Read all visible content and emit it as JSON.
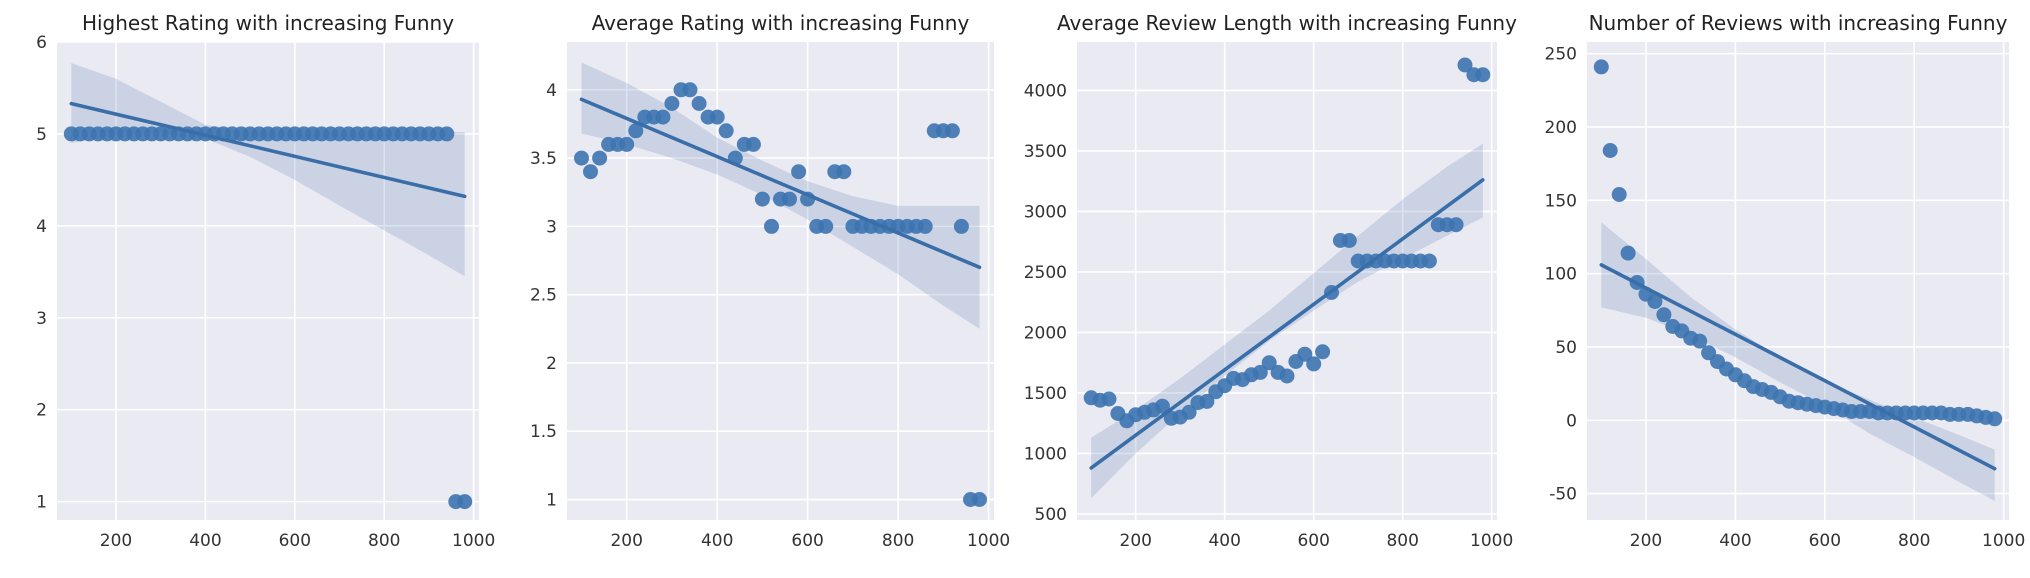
{
  "chart_data": [
    {
      "type": "scatter",
      "title": "Highest Rating with increasing Funny",
      "xlabel": "",
      "ylabel": "",
      "xlim": [
        68,
        1012
      ],
      "ylim": [
        0.8,
        6.0
      ],
      "xticks": [
        200,
        400,
        600,
        800,
        1000
      ],
      "yticks": [
        1,
        2,
        3,
        4,
        5,
        6
      ],
      "grid": true,
      "points": {
        "x": [
          100,
          120,
          140,
          160,
          180,
          200,
          220,
          240,
          260,
          280,
          300,
          320,
          340,
          360,
          380,
          400,
          420,
          440,
          460,
          480,
          500,
          520,
          540,
          560,
          580,
          600,
          620,
          640,
          660,
          680,
          700,
          720,
          740,
          760,
          780,
          800,
          820,
          840,
          860,
          880,
          900,
          920,
          940,
          960,
          980
        ],
        "y": [
          5,
          5,
          5,
          5,
          5,
          5,
          5,
          5,
          5,
          5,
          5,
          5,
          5,
          5,
          5,
          5,
          5,
          5,
          5,
          5,
          5,
          5,
          5,
          5,
          5,
          5,
          5,
          5,
          5,
          5,
          5,
          5,
          5,
          5,
          5,
          5,
          5,
          5,
          5,
          5,
          5,
          5,
          5,
          1,
          1
        ]
      },
      "regression": {
        "x": [
          100,
          980
        ],
        "y": [
          5.33,
          4.32
        ]
      },
      "ci_band": {
        "x": [
          100,
          200,
          300,
          400,
          500,
          600,
          700,
          800,
          900,
          980
        ],
        "lower": [
          4.9,
          5.0,
          5.0,
          4.95,
          4.75,
          4.5,
          4.22,
          3.95,
          3.68,
          3.45
        ],
        "upper": [
          5.77,
          5.6,
          5.35,
          5.1,
          5.02,
          5.02,
          5.02,
          5.02,
          5.02,
          5.02
        ]
      }
    },
    {
      "type": "scatter",
      "title": "Average Rating with increasing Funny",
      "xlabel": "",
      "ylabel": "",
      "xlim": [
        68,
        1012
      ],
      "ylim": [
        0.85,
        4.35
      ],
      "xticks": [
        200,
        400,
        600,
        800,
        1000
      ],
      "yticks": [
        1.0,
        1.5,
        2.0,
        2.5,
        3.0,
        3.5,
        4.0
      ],
      "grid": true,
      "points": {
        "x": [
          100,
          120,
          140,
          160,
          180,
          200,
          220,
          240,
          260,
          280,
          300,
          320,
          340,
          360,
          380,
          400,
          420,
          440,
          460,
          480,
          500,
          520,
          540,
          560,
          580,
          600,
          620,
          640,
          660,
          680,
          700,
          720,
          740,
          760,
          780,
          800,
          820,
          840,
          860,
          880,
          900,
          920,
          940,
          960,
          980
        ],
        "y": [
          3.5,
          3.4,
          3.5,
          3.6,
          3.6,
          3.6,
          3.7,
          3.8,
          3.8,
          3.8,
          3.9,
          4.0,
          4.0,
          3.9,
          3.8,
          3.8,
          3.7,
          3.5,
          3.6,
          3.6,
          3.2,
          3.0,
          3.2,
          3.2,
          3.4,
          3.2,
          3.0,
          3.0,
          3.4,
          3.4,
          3.0,
          3.0,
          3.0,
          3.0,
          3.0,
          3.0,
          3.0,
          3.0,
          3.0,
          3.7,
          3.7,
          3.7,
          3.0,
          1.0,
          1.0
        ]
      },
      "regression": {
        "x": [
          100,
          980
        ],
        "y": [
          3.93,
          2.7
        ]
      },
      "ci_band": {
        "x": [
          100,
          200,
          300,
          400,
          500,
          600,
          700,
          800,
          900,
          980
        ],
        "lower": [
          3.68,
          3.6,
          3.5,
          3.38,
          3.23,
          3.05,
          2.85,
          2.65,
          2.42,
          2.25
        ],
        "upper": [
          4.2,
          4.05,
          3.87,
          3.65,
          3.48,
          3.33,
          3.22,
          3.15,
          3.15,
          3.15
        ]
      }
    },
    {
      "type": "scatter",
      "title": "Average Review Length with increasing Funny",
      "xlabel": "",
      "ylabel": "",
      "xlim": [
        68,
        1012
      ],
      "ylim": [
        450,
        4400
      ],
      "xticks": [
        200,
        400,
        600,
        800,
        1000
      ],
      "yticks": [
        500,
        1000,
        1500,
        2000,
        2500,
        3000,
        3500,
        4000
      ],
      "grid": true,
      "points": {
        "x": [
          100,
          120,
          140,
          160,
          180,
          200,
          220,
          240,
          260,
          280,
          300,
          320,
          340,
          360,
          380,
          400,
          420,
          440,
          460,
          480,
          500,
          520,
          540,
          560,
          580,
          600,
          620,
          640,
          660,
          680,
          700,
          720,
          740,
          760,
          780,
          800,
          820,
          840,
          860,
          880,
          900,
          920,
          940,
          960,
          980
        ],
        "y": [
          1460,
          1440,
          1450,
          1330,
          1270,
          1320,
          1340,
          1360,
          1390,
          1290,
          1300,
          1340,
          1420,
          1430,
          1510,
          1560,
          1620,
          1610,
          1650,
          1670,
          1750,
          1670,
          1640,
          1760,
          1820,
          1740,
          1840,
          2330,
          2760,
          2760,
          2590,
          2590,
          2590,
          2590,
          2590,
          2590,
          2590,
          2590,
          2590,
          2890,
          2890,
          2890,
          4210,
          4130,
          4130
        ]
      },
      "regression": {
        "x": [
          100,
          980
        ],
        "y": [
          880,
          3260
        ]
      },
      "ci_band": {
        "x": [
          100,
          200,
          300,
          400,
          500,
          600,
          700,
          800,
          900,
          980
        ],
        "lower": [
          630,
          1000,
          1330,
          1640,
          1930,
          2180,
          2420,
          2610,
          2800,
          2950
        ],
        "upper": [
          1130,
          1360,
          1620,
          1900,
          2180,
          2490,
          2800,
          3100,
          3370,
          3560
        ]
      }
    },
    {
      "type": "scatter",
      "title": "Number of Reviews with increasing Funny",
      "xlabel": "",
      "ylabel": "",
      "xlim": [
        68,
        1012
      ],
      "ylim": [
        -68,
        258
      ],
      "xticks": [
        200,
        400,
        600,
        800,
        1000
      ],
      "yticks": [
        -50,
        0,
        50,
        100,
        150,
        200,
        250
      ],
      "grid": true,
      "points": {
        "x": [
          100,
          120,
          140,
          160,
          180,
          200,
          220,
          240,
          260,
          280,
          300,
          320,
          340,
          360,
          380,
          400,
          420,
          440,
          460,
          480,
          500,
          520,
          540,
          560,
          580,
          600,
          620,
          640,
          660,
          680,
          700,
          720,
          740,
          760,
          780,
          800,
          820,
          840,
          860,
          880,
          900,
          920,
          940,
          960,
          980
        ],
        "y": [
          241,
          184,
          154,
          114,
          94,
          86,
          81,
          72,
          64,
          61,
          56,
          54,
          46,
          40,
          35,
          31,
          27,
          23,
          21,
          19,
          16,
          13,
          12,
          11,
          10,
          9,
          8,
          7,
          6,
          6,
          6,
          5,
          5,
          5,
          5,
          5,
          5,
          5,
          5,
          4,
          4,
          4,
          3,
          2,
          1
        ]
      },
      "regression": {
        "x": [
          100,
          980
        ],
        "y": [
          106,
          -33
        ]
      },
      "ci_band": {
        "x": [
          100,
          200,
          300,
          400,
          500,
          600,
          700,
          800,
          900,
          980
        ],
        "lower": [
          77,
          70,
          58,
          43,
          26,
          10,
          -9,
          -25,
          -42,
          -55
        ],
        "upper": [
          135,
          110,
          84,
          62,
          43,
          27,
          14,
          2,
          -10,
          -20
        ]
      }
    }
  ]
}
